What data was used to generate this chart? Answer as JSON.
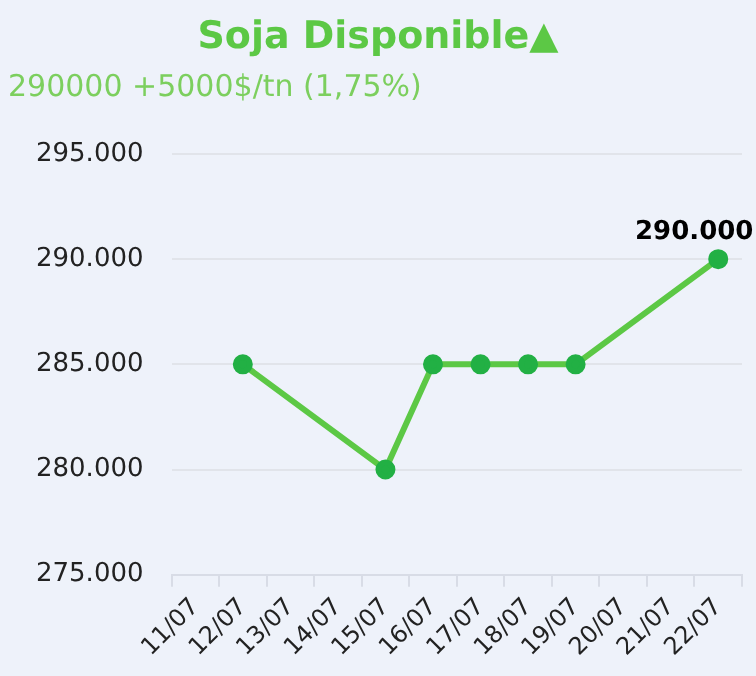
{
  "chart_data": {
    "type": "line",
    "title": "Soja Disponible▲",
    "subtitle": "290000 +5000$/tn (1,75%)",
    "categories": [
      "11/07",
      "12/07",
      "13/07",
      "14/07",
      "15/07",
      "16/07",
      "17/07",
      "18/07",
      "19/07",
      "20/07",
      "21/07",
      "22/07"
    ],
    "series": [
      {
        "color": "#5cc845",
        "values": [
          null,
          285000,
          null,
          null,
          280000,
          285000,
          285000,
          285000,
          285000,
          null,
          null,
          290000
        ],
        "value_labels": [
          null,
          null,
          null,
          null,
          null,
          null,
          null,
          null,
          null,
          null,
          null,
          "290.000"
        ]
      }
    ],
    "ylim": [
      275000,
      295000
    ],
    "yticks": [
      {
        "value": 275000,
        "label": "275.000"
      },
      {
        "value": 280000,
        "label": "280.000"
      },
      {
        "value": 285000,
        "label": "285.000"
      },
      {
        "value": 290000,
        "label": "290.000"
      },
      {
        "value": 295000,
        "label": "295.000"
      }
    ],
    "grid": "y",
    "legend": false,
    "marker": "circle",
    "line_style": "solid"
  }
}
